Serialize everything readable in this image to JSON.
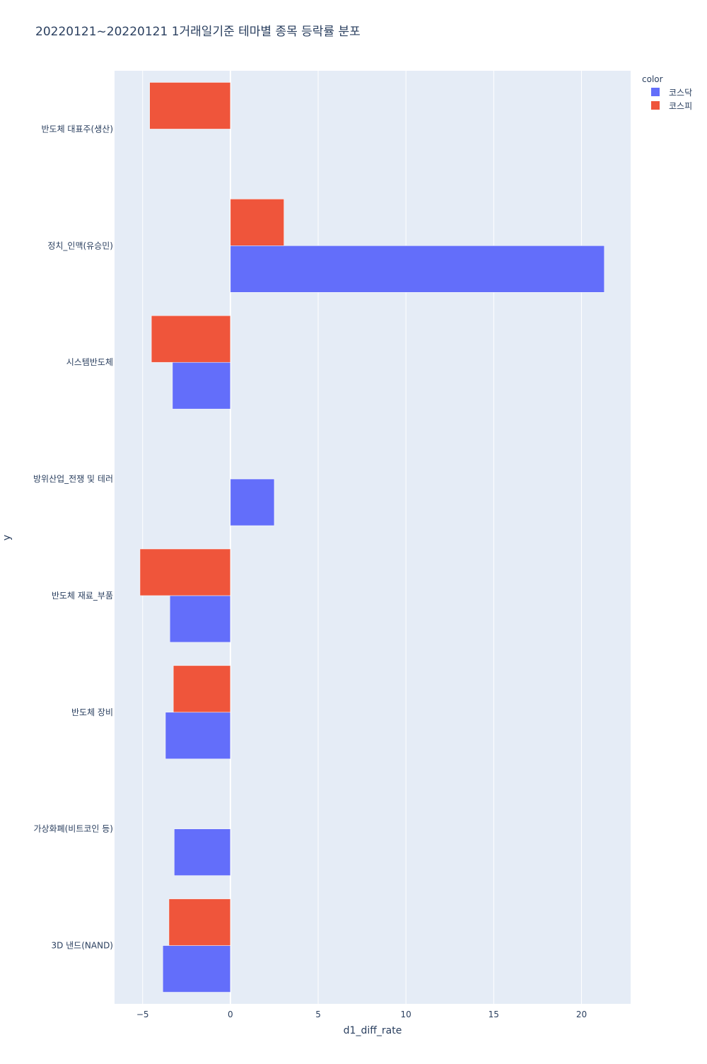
{
  "chart_data": {
    "type": "bar",
    "orientation": "horizontal",
    "barmode": "group",
    "title": "20220121~20220121 1거래일기준 테마별 종목 등락률 분포",
    "xlabel": "d1_diff_rate",
    "ylabel": "y",
    "xlim": [
      -6.6,
      22.8
    ],
    "xticks": [
      -5,
      0,
      5,
      10,
      15,
      20
    ],
    "xtick_labels": [
      "−5",
      "0",
      "5",
      "10",
      "15",
      "20"
    ],
    "grid": true,
    "legend_title": "color",
    "legend_position": "top-right",
    "categories": [
      "반도체 대표주(생산)",
      "정치_인맥(유승민)",
      "시스템반도체",
      "방위산업_전쟁 및 테러",
      "반도체 재료_부품",
      "반도체 장비",
      "가상화폐(비트코인 등)",
      "3D 낸드(NAND)"
    ],
    "series": [
      {
        "name": "코스닥",
        "color": "#636efa",
        "values": [
          null,
          21.3,
          -3.3,
          2.5,
          -3.45,
          -3.7,
          -3.2,
          -3.85
        ]
      },
      {
        "name": "코스피",
        "color": "#ef553b",
        "values": [
          -4.6,
          3.05,
          -4.5,
          null,
          -5.15,
          -3.25,
          null,
          -3.5
        ]
      }
    ]
  }
}
